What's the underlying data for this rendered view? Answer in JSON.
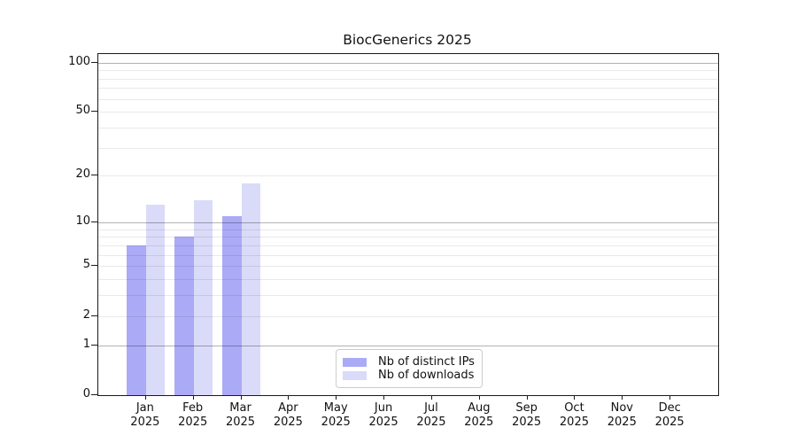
{
  "title": "BiocGenerics 2025",
  "chart_data": {
    "type": "bar",
    "title": "BiocGenerics 2025",
    "categories": [
      "Jan 2025",
      "Feb 2025",
      "Mar 2025",
      "Apr 2025",
      "May 2025",
      "Jun 2025",
      "Jul 2025",
      "Aug 2025",
      "Sep 2025",
      "Oct 2025",
      "Nov 2025",
      "Dec 2025"
    ],
    "series": [
      {
        "name": "Nb of distinct IPs",
        "color": "#aaaaf6",
        "values": [
          7,
          8,
          11,
          0,
          0,
          0,
          0,
          0,
          0,
          0,
          0,
          0
        ]
      },
      {
        "name": "Nb of downloads",
        "color": "#dadaf9",
        "values": [
          13,
          14,
          18,
          0,
          0,
          0,
          0,
          0,
          0,
          0,
          0,
          0
        ]
      }
    ],
    "xlabel": "",
    "ylabel": "",
    "y_scale": "log1p",
    "ylim": [
      0,
      113
    ],
    "y_ticks": [
      0,
      1,
      2,
      5,
      10,
      20,
      50,
      100
    ],
    "grid_minor": [
      2,
      3,
      4,
      5,
      6,
      7,
      8,
      9,
      20,
      30,
      40,
      50,
      60,
      70,
      80,
      90
    ],
    "grid_major": [
      1,
      10,
      100
    ],
    "grid": "horizontal",
    "legend_position": "lower center"
  }
}
